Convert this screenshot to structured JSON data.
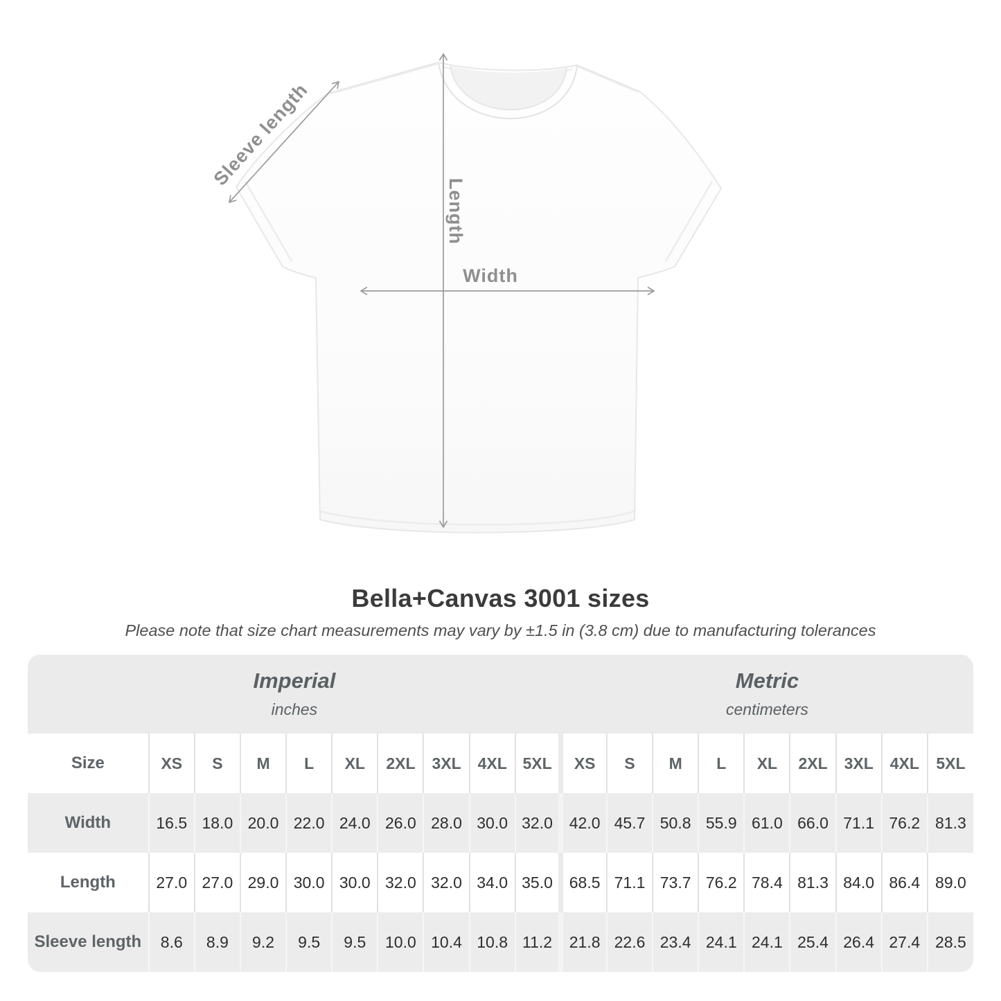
{
  "diagram": {
    "sleeve_label": "Sleeve length",
    "length_label": "Length",
    "width_label": "Width"
  },
  "heading": {
    "title": "Bella+Canvas 3001 sizes",
    "subtitle": "Please note that size chart measurements may vary by ±1.5 in (3.8 cm) due to manufacturing tolerances"
  },
  "table": {
    "sections": [
      {
        "name": "Imperial",
        "unit": "inches"
      },
      {
        "name": "Metric",
        "unit": "centimeters"
      }
    ],
    "size_label": "Size",
    "sizes": [
      "XS",
      "S",
      "M",
      "L",
      "XL",
      "2XL",
      "3XL",
      "4XL",
      "5XL"
    ],
    "rows": [
      {
        "label": "Width",
        "imperial": [
          "16.5",
          "18.0",
          "20.0",
          "22.0",
          "24.0",
          "26.0",
          "28.0",
          "30.0",
          "32.0"
        ],
        "metric": [
          "42.0",
          "45.7",
          "50.8",
          "55.9",
          "61.0",
          "66.0",
          "71.1",
          "76.2",
          "81.3"
        ]
      },
      {
        "label": "Length",
        "imperial": [
          "27.0",
          "27.0",
          "29.0",
          "30.0",
          "30.0",
          "32.0",
          "32.0",
          "34.0",
          "35.0"
        ],
        "metric": [
          "68.5",
          "71.1",
          "73.7",
          "76.2",
          "78.4",
          "81.3",
          "84.0",
          "86.4",
          "89.0"
        ]
      },
      {
        "label": "Sleeve length",
        "imperial": [
          "8.6",
          "8.9",
          "9.2",
          "9.5",
          "9.5",
          "10.0",
          "10.4",
          "10.8",
          "11.2"
        ],
        "metric": [
          "21.8",
          "22.6",
          "23.4",
          "24.1",
          "24.1",
          "25.4",
          "26.4",
          "27.4",
          "28.5"
        ]
      }
    ]
  },
  "chart_data": {
    "type": "table",
    "title": "Bella+Canvas 3001 sizes",
    "note": "Measurements may vary by ±1.5 in (3.8 cm) due to manufacturing tolerances",
    "sizes": [
      "XS",
      "S",
      "M",
      "L",
      "XL",
      "2XL",
      "3XL",
      "4XL",
      "5XL"
    ],
    "measurements": [
      {
        "name": "Width",
        "inches": [
          16.5,
          18.0,
          20.0,
          22.0,
          24.0,
          26.0,
          28.0,
          30.0,
          32.0
        ],
        "centimeters": [
          42.0,
          45.7,
          50.8,
          55.9,
          61.0,
          66.0,
          71.1,
          76.2,
          81.3
        ]
      },
      {
        "name": "Length",
        "inches": [
          27.0,
          27.0,
          29.0,
          30.0,
          30.0,
          32.0,
          32.0,
          34.0,
          35.0
        ],
        "centimeters": [
          68.5,
          71.1,
          73.7,
          76.2,
          78.4,
          81.3,
          84.0,
          86.4,
          89.0
        ]
      },
      {
        "name": "Sleeve length",
        "inches": [
          8.6,
          8.9,
          9.2,
          9.5,
          9.5,
          10.0,
          10.4,
          10.8,
          11.2
        ],
        "centimeters": [
          21.8,
          22.6,
          23.4,
          24.1,
          24.1,
          25.4,
          26.4,
          27.4,
          28.5
        ]
      }
    ]
  },
  "colors": {
    "table_band": "#ebebeb",
    "row_stripe": "#ececec",
    "header_text": "#5e6467",
    "value_text": "#2e2e2e",
    "title_text": "#3b3b3b",
    "subtitle_text": "#4f4f4f",
    "arrow": "#9c9c9c",
    "diagram_label": "#8f8f8f",
    "shirt_outline": "#e7e7e7"
  }
}
